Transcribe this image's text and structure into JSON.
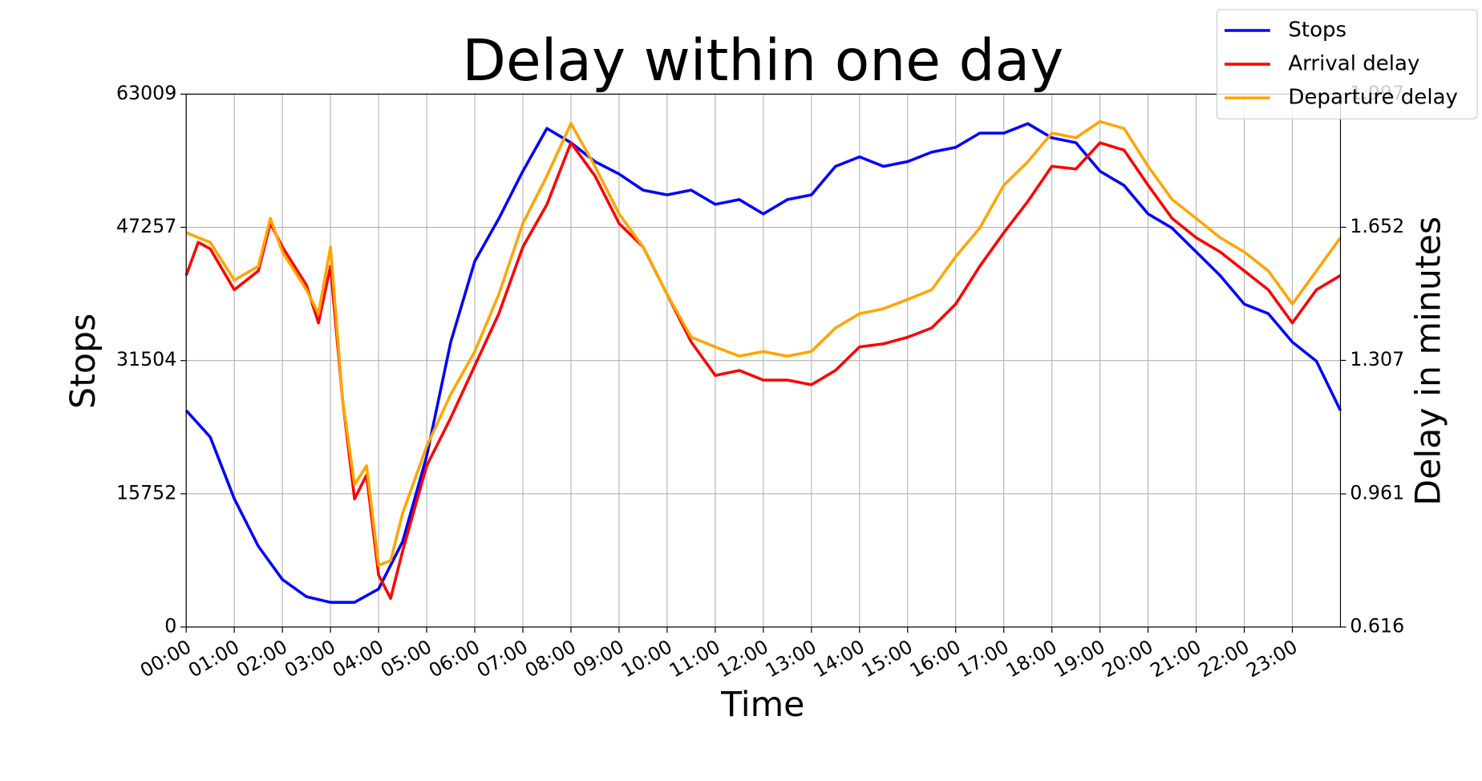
{
  "chart_data": {
    "type": "line",
    "title": "Delay within one day",
    "x_label": "Time",
    "y_label": "Stops",
    "y_label_color": "#0000ff",
    "y2_label": "Delay in minutes",
    "y2_label_color": "#ffa500",
    "xlim": [
      0,
      24
    ],
    "xticks": [
      {
        "value": 0,
        "label": "00:00"
      },
      {
        "value": 1,
        "label": "01:00"
      },
      {
        "value": 2,
        "label": "02:00"
      },
      {
        "value": 3,
        "label": "03:00"
      },
      {
        "value": 4,
        "label": "04:00"
      },
      {
        "value": 5,
        "label": "05:00"
      },
      {
        "value": 6,
        "label": "06:00"
      },
      {
        "value": 7,
        "label": "07:00"
      },
      {
        "value": 8,
        "label": "08:00"
      },
      {
        "value": 9,
        "label": "09:00"
      },
      {
        "value": 10,
        "label": "10:00"
      },
      {
        "value": 11,
        "label": "11:00"
      },
      {
        "value": 12,
        "label": "12:00"
      },
      {
        "value": 13,
        "label": "13:00"
      },
      {
        "value": 14,
        "label": "14:00"
      },
      {
        "value": 15,
        "label": "15:00"
      },
      {
        "value": 16,
        "label": "16:00"
      },
      {
        "value": 17,
        "label": "17:00"
      },
      {
        "value": 18,
        "label": "18:00"
      },
      {
        "value": 19,
        "label": "19:00"
      },
      {
        "value": 20,
        "label": "20:00"
      },
      {
        "value": 21,
        "label": "21:00"
      },
      {
        "value": 22,
        "label": "22:00"
      },
      {
        "value": 23,
        "label": "23:00"
      }
    ],
    "ylim": [
      0,
      63009
    ],
    "yticks": [
      0,
      15752,
      31504,
      47257,
      63009
    ],
    "y2lim": [
      0.616,
      1.997
    ],
    "y2ticks": [
      0.616,
      0.961,
      1.307,
      1.652,
      1.997
    ],
    "grid": true,
    "legend": "upper right",
    "series": [
      {
        "name": "Stops",
        "color": "#0000ff",
        "x": [
          0,
          0.5,
          1,
          1.5,
          2,
          2.5,
          3,
          3.5,
          4,
          4.5,
          5,
          5.5,
          6,
          6.5,
          7,
          7.5,
          8,
          8.5,
          9,
          9.5,
          10,
          10.5,
          11,
          11.5,
          12,
          12.5,
          13,
          13.5,
          14,
          14.5,
          15,
          15.5,
          16,
          16.5,
          17,
          17.5,
          18,
          18.5,
          19,
          19.5,
          20,
          20.5,
          21,
          21.5,
          22,
          22.5,
          23,
          23.5,
          24
        ],
        "values": [
          25600,
          22460,
          15160,
          9550,
          5620,
          3590,
          2920,
          2920,
          4490,
          10100,
          20210,
          33690,
          43240,
          48290,
          53900,
          58960,
          57270,
          55030,
          53570,
          51660,
          51100,
          51660,
          49980,
          50540,
          48850,
          50540,
          51100,
          54470,
          55590,
          54470,
          55030,
          56150,
          56720,
          58400,
          58400,
          59520,
          57840,
          57270,
          53900,
          52220,
          48850,
          47170,
          44360,
          41550,
          38180,
          37060,
          33690,
          31440,
          25600
        ]
      },
      {
        "name": "Arrival delay",
        "color": "#ff0000",
        "axis": "y2",
        "x": [
          0,
          0.25,
          0.5,
          1,
          1.5,
          1.75,
          2,
          2.5,
          2.75,
          3,
          3.25,
          3.5,
          3.75,
          4,
          4.25,
          4.5,
          5,
          5.5,
          6,
          6.5,
          7,
          7.5,
          8,
          8.5,
          9,
          9.5,
          10,
          10.5,
          11,
          11.5,
          12,
          12.5,
          13,
          13.5,
          14,
          14.5,
          15,
          15.5,
          16,
          16.5,
          17,
          17.5,
          18,
          18.5,
          19,
          19.5,
          20,
          20.5,
          21,
          21.5,
          22,
          22.5,
          23,
          23.5,
          24
        ],
        "values": [
          1.527,
          1.613,
          1.596,
          1.49,
          1.539,
          1.662,
          1.601,
          1.502,
          1.404,
          1.551,
          1.207,
          0.948,
          1.01,
          0.751,
          0.69,
          0.813,
          1.034,
          1.158,
          1.293,
          1.428,
          1.601,
          1.711,
          1.871,
          1.785,
          1.662,
          1.601,
          1.478,
          1.355,
          1.268,
          1.281,
          1.256,
          1.256,
          1.244,
          1.281,
          1.342,
          1.35,
          1.367,
          1.391,
          1.453,
          1.551,
          1.638,
          1.719,
          1.81,
          1.803,
          1.871,
          1.852,
          1.761,
          1.675,
          1.625,
          1.588,
          1.539,
          1.49,
          1.404,
          1.49,
          1.527
        ]
      },
      {
        "name": "Departure delay",
        "color": "#ffa500",
        "axis": "y2",
        "x": [
          0,
          0.5,
          1,
          1.5,
          1.75,
          2,
          2.5,
          2.75,
          3,
          3.25,
          3.5,
          3.75,
          4,
          4.25,
          4.5,
          5,
          5.5,
          6,
          6.5,
          7,
          7.5,
          8,
          8.5,
          9,
          9.5,
          10,
          10.5,
          11,
          11.5,
          12,
          12.5,
          13,
          13.5,
          14,
          14.5,
          15,
          15.5,
          16,
          16.5,
          17,
          17.5,
          18,
          18.5,
          19,
          19.5,
          20,
          20.5,
          21,
          21.5,
          22,
          22.5,
          23,
          23.5,
          24
        ],
        "values": [
          1.638,
          1.613,
          1.515,
          1.551,
          1.675,
          1.588,
          1.49,
          1.428,
          1.601,
          1.207,
          0.985,
          1.034,
          0.776,
          0.788,
          0.911,
          1.084,
          1.219,
          1.33,
          1.478,
          1.662,
          1.785,
          1.921,
          1.81,
          1.687,
          1.601,
          1.478,
          1.367,
          1.342,
          1.318,
          1.33,
          1.318,
          1.33,
          1.391,
          1.428,
          1.441,
          1.465,
          1.49,
          1.576,
          1.65,
          1.761,
          1.822,
          1.896,
          1.884,
          1.926,
          1.908,
          1.81,
          1.724,
          1.675,
          1.625,
          1.588,
          1.539,
          1.453,
          1.539,
          1.625
        ]
      }
    ]
  }
}
